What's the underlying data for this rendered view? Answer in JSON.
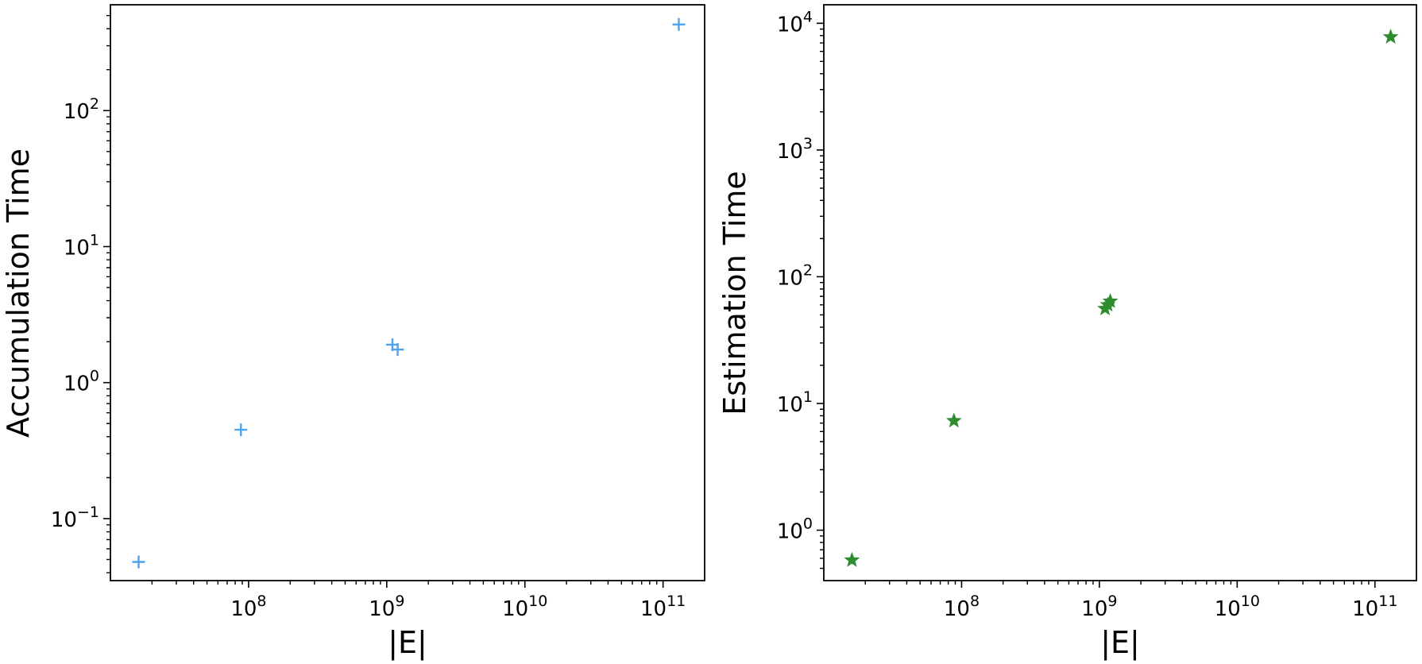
{
  "chart_data": [
    {
      "type": "scatter",
      "xlabel": "|E|",
      "ylabel": "Accumulation Time",
      "xscale": "log",
      "yscale": "log",
      "xlim": [
        10000000,
        200000000000
      ],
      "ylim": [
        0.035,
        600
      ],
      "xticks": [
        {
          "value": 100000000,
          "base": "10",
          "exp": "8"
        },
        {
          "value": 1000000000,
          "base": "10",
          "exp": "9"
        },
        {
          "value": 10000000000,
          "base": "10",
          "exp": "10"
        },
        {
          "value": 100000000000,
          "base": "10",
          "exp": "11"
        }
      ],
      "yticks": [
        {
          "value": 0.1,
          "base": "10",
          "exp": "−1"
        },
        {
          "value": 1,
          "base": "10",
          "exp": "0"
        },
        {
          "value": 10,
          "base": "10",
          "exp": "1"
        },
        {
          "value": 100,
          "base": "10",
          "exp": "2"
        }
      ],
      "marker": "plus",
      "color": "#4da3ef",
      "grid": false,
      "points": [
        {
          "x": 16000000,
          "y": 0.048
        },
        {
          "x": 88000000,
          "y": 0.45
        },
        {
          "x": 1100000000,
          "y": 1.9
        },
        {
          "x": 1200000000,
          "y": 1.75
        },
        {
          "x": 130000000000,
          "y": 430
        }
      ]
    },
    {
      "type": "scatter",
      "xlabel": "|E|",
      "ylabel": "Estimation Time",
      "xscale": "log",
      "yscale": "log",
      "xlim": [
        10000000,
        200000000000
      ],
      "ylim": [
        0.4,
        14000
      ],
      "xticks": [
        {
          "value": 100000000,
          "base": "10",
          "exp": "8"
        },
        {
          "value": 1000000000,
          "base": "10",
          "exp": "9"
        },
        {
          "value": 10000000000,
          "base": "10",
          "exp": "10"
        },
        {
          "value": 100000000000,
          "base": "10",
          "exp": "11"
        }
      ],
      "yticks": [
        {
          "value": 1,
          "base": "10",
          "exp": "0"
        },
        {
          "value": 10,
          "base": "10",
          "exp": "1"
        },
        {
          "value": 100,
          "base": "10",
          "exp": "2"
        },
        {
          "value": 1000,
          "base": "10",
          "exp": "3"
        },
        {
          "value": 10000,
          "base": "10",
          "exp": "4"
        }
      ],
      "marker": "star",
      "color": "#2e8b2e",
      "grid": false,
      "points": [
        {
          "x": 16000000,
          "y": 0.58
        },
        {
          "x": 88000000,
          "y": 7.3
        },
        {
          "x": 1100000000,
          "y": 56
        },
        {
          "x": 1150000000,
          "y": 60
        },
        {
          "x": 1200000000,
          "y": 64
        },
        {
          "x": 130000000000,
          "y": 7800
        }
      ]
    }
  ]
}
